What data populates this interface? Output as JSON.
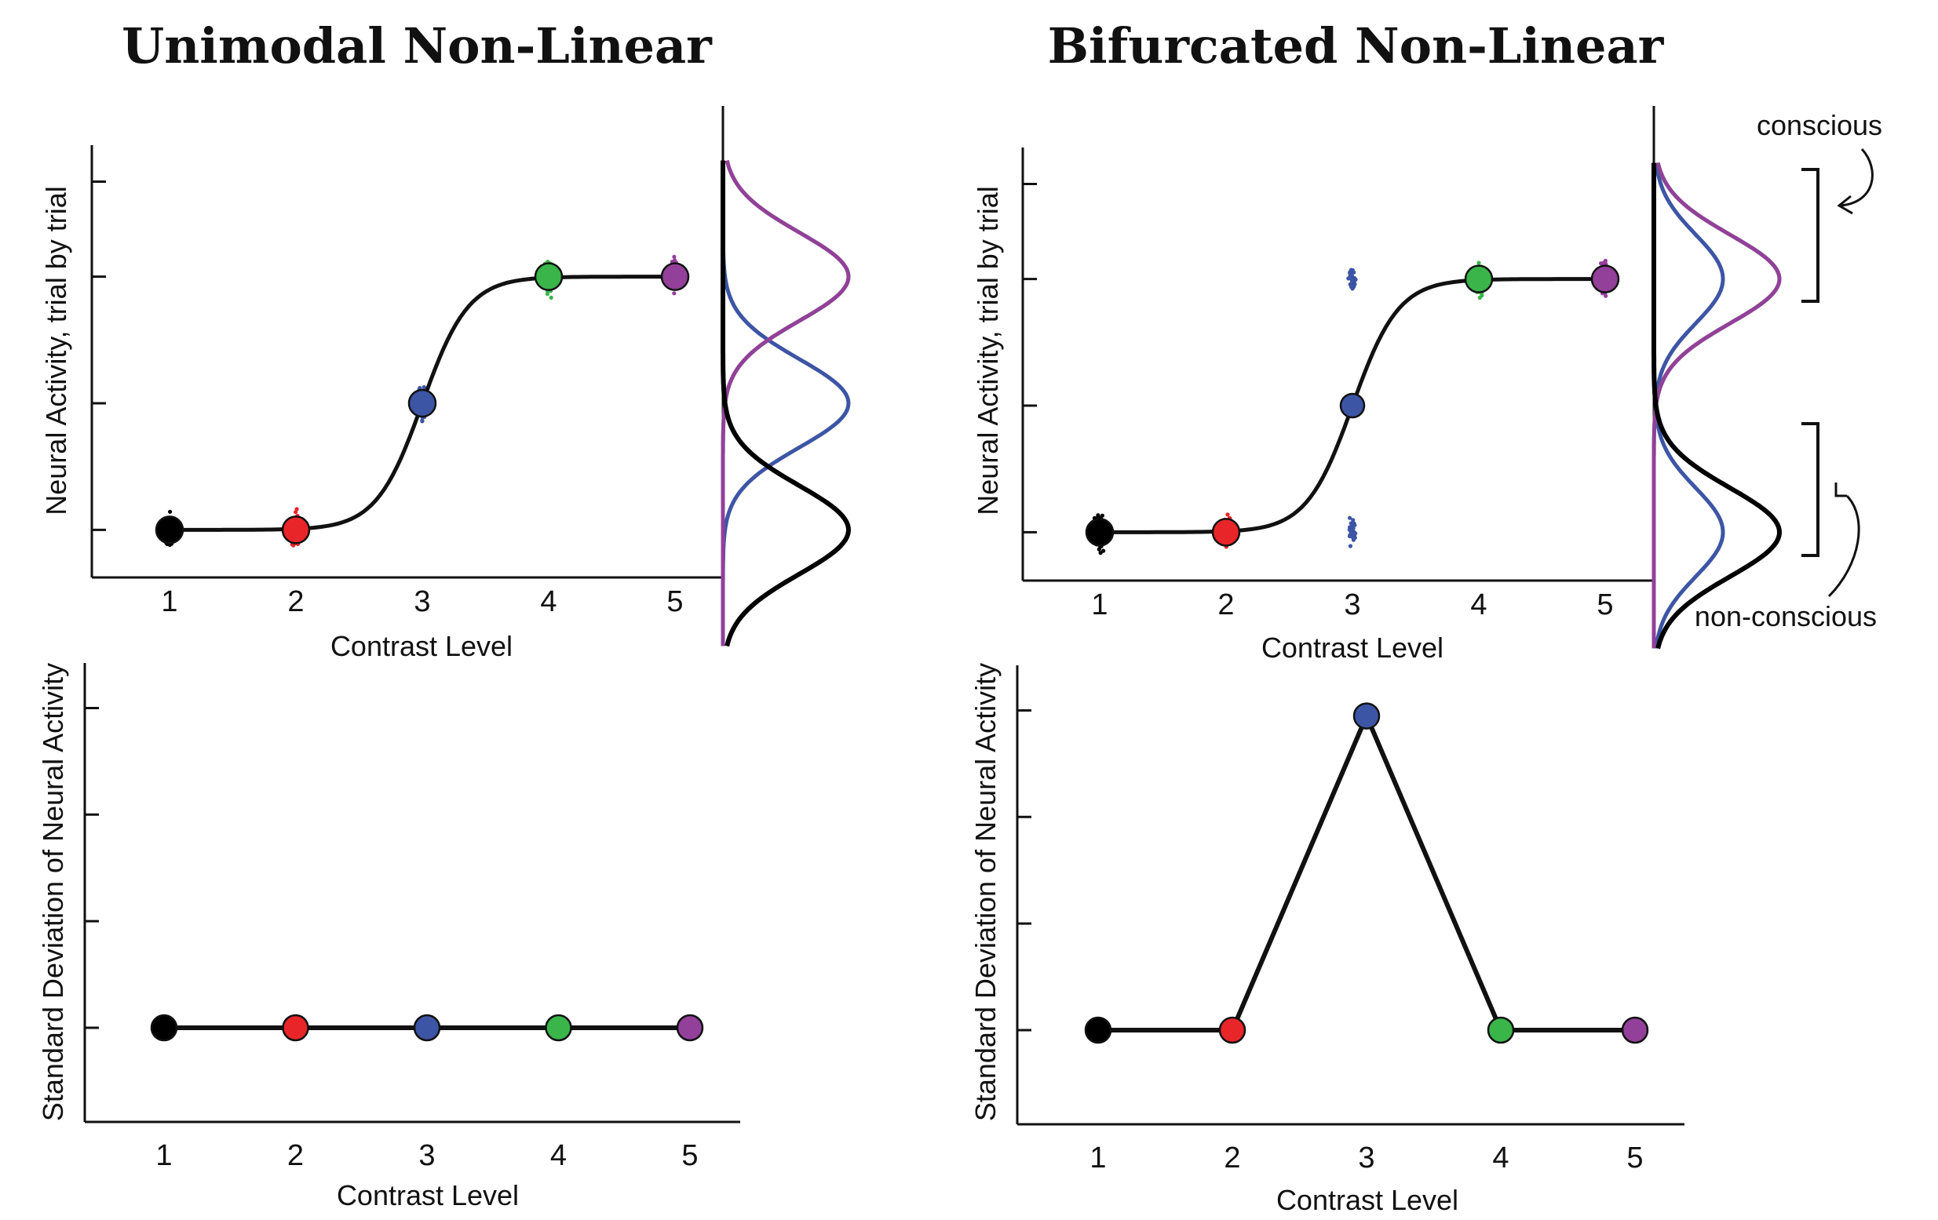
{
  "chart_data": [
    {
      "id": "unimodal-top",
      "type": "scatter",
      "title": "Unimodal Non-Linear",
      "xlabel": "Contrast Level",
      "ylabel": "Neural Activity, trial by trial",
      "x_ticks": [
        "1",
        "2",
        "3",
        "4",
        "5"
      ],
      "xlim": [
        0.4,
        5.4
      ],
      "ylim": [
        0,
        4
      ],
      "grid": false,
      "series": [
        {
          "x": 1,
          "mean": 0.8,
          "spread": [
            0.2,
            0.95
          ],
          "color": "#000000"
        },
        {
          "x": 2,
          "mean": 0.8,
          "spread": [
            0.2,
            0.95
          ],
          "color": "#e8262a"
        },
        {
          "x": 3,
          "mean": 2.0,
          "spread": [
            1.5,
            2.3
          ],
          "color": "#3d55a5"
        },
        {
          "x": 4,
          "mean": 3.2,
          "spread": [
            2.6,
            3.85
          ],
          "color": "#39b54a"
        },
        {
          "x": 5,
          "mean": 3.2,
          "spread": [
            2.6,
            3.85
          ],
          "color": "#93409a"
        }
      ],
      "fit_curve": {
        "type": "sigmoid",
        "low": 0.8,
        "high": 3.2,
        "midpoint": 3.0
      },
      "distributions": [
        {
          "color": "#000000",
          "modes": [
            0.8
          ]
        },
        {
          "color": "#e8262a",
          "modes": [
            0.8
          ]
        },
        {
          "color": "#3d55a5",
          "modes": [
            2.0
          ]
        },
        {
          "color": "#39b54a",
          "modes": [
            3.2
          ]
        },
        {
          "color": "#93409a",
          "modes": [
            3.2
          ]
        }
      ]
    },
    {
      "id": "bifurcated-top",
      "type": "scatter",
      "title": "Bifurcated Non-Linear",
      "xlabel": "Contrast Level",
      "ylabel": "Neural Activity, trial by trial",
      "x_ticks": [
        "1",
        "2",
        "3",
        "4",
        "5"
      ],
      "xlim": [
        0.4,
        5.4
      ],
      "ylim": [
        0,
        4
      ],
      "grid": false,
      "series": [
        {
          "x": 1,
          "mean": 0.8,
          "clusters": [
            0.8
          ],
          "color": "#000000"
        },
        {
          "x": 2,
          "mean": 0.8,
          "clusters": [
            0.8
          ],
          "color": "#e8262a"
        },
        {
          "x": 3,
          "mean": 2.0,
          "clusters": [
            0.8,
            3.2
          ],
          "color": "#3d55a5"
        },
        {
          "x": 4,
          "mean": 3.2,
          "clusters": [
            3.2
          ],
          "color": "#39b54a"
        },
        {
          "x": 5,
          "mean": 3.2,
          "clusters": [
            3.2
          ],
          "color": "#93409a"
        }
      ],
      "fit_curve": {
        "type": "sigmoid",
        "low": 0.8,
        "high": 3.2,
        "midpoint": 3.0
      },
      "distributions": [
        {
          "color": "#000000",
          "modes": [
            0.8
          ]
        },
        {
          "color": "#e8262a",
          "modes": [
            0.8
          ]
        },
        {
          "color": "#3d55a5",
          "modes": [
            0.8,
            3.2
          ]
        },
        {
          "color": "#39b54a",
          "modes": [
            3.2
          ]
        },
        {
          "color": "#93409a",
          "modes": [
            3.2
          ]
        }
      ],
      "annotations": [
        "conscious",
        "non-conscious"
      ]
    },
    {
      "id": "unimodal-bottom",
      "type": "line",
      "xlabel": "Contrast Level",
      "ylabel": "Standard Deviation of Neural Activity",
      "x": [
        "1",
        "2",
        "3",
        "4",
        "5"
      ],
      "values": [
        1,
        1,
        1,
        1,
        1
      ],
      "colors": [
        "#000000",
        "#e8262a",
        "#3d55a5",
        "#39b54a",
        "#93409a"
      ],
      "ylim": [
        0.55,
        4.0
      ],
      "grid": false
    },
    {
      "id": "bifurcated-bottom",
      "type": "line",
      "xlabel": "Contrast Level",
      "ylabel": "Standard Deviation of Neural Activity",
      "x": [
        "1",
        "2",
        "3",
        "4",
        "5"
      ],
      "values": [
        1,
        1,
        3.8,
        1,
        1
      ],
      "colors": [
        "#000000",
        "#e8262a",
        "#3d55a5",
        "#39b54a",
        "#93409a"
      ],
      "ylim": [
        0.55,
        4.0
      ],
      "grid": false
    }
  ]
}
